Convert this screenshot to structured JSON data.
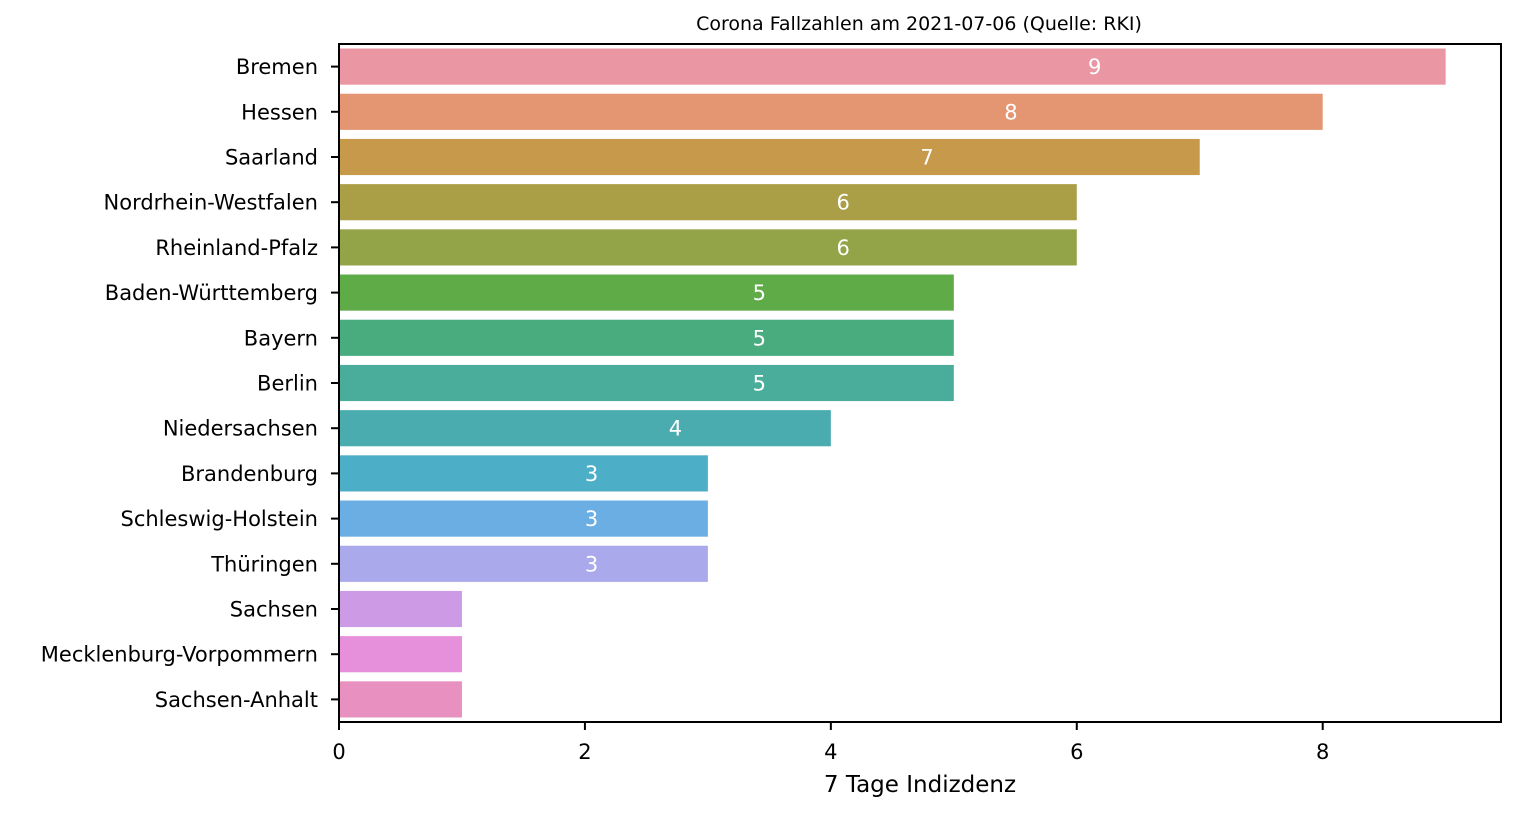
{
  "chart_data": {
    "type": "bar",
    "orientation": "horizontal",
    "title": "Corona Fallzahlen am 2021-07-06 (Quelle: RKI)",
    "xlabel": "7 Tage Indizdenz",
    "ylabel": "",
    "xlim": [
      0,
      9.45
    ],
    "xticks": [
      0,
      2,
      4,
      6,
      8
    ],
    "grid": false,
    "categories": [
      "Bremen",
      "Hessen",
      "Saarland",
      "Nordrhein-Westfalen",
      "Rheinland-Pfalz",
      "Baden-Württemberg",
      "Bayern",
      "Berlin",
      "Niedersachsen",
      "Brandenburg",
      "Schleswig-Holstein",
      "Thüringen",
      "Sachsen",
      "Mecklenburg-Vorpommern",
      "Sachsen-Anhalt"
    ],
    "values": [
      9,
      8,
      7,
      6,
      6,
      5,
      5,
      5,
      4,
      3,
      3,
      3,
      1,
      1,
      1
    ],
    "bar_labels": [
      "9",
      "8",
      "7",
      "6",
      "6",
      "5",
      "5",
      "5",
      "4",
      "3",
      "3",
      "3",
      "",
      "",
      ""
    ],
    "colors": [
      "#ea96a3",
      "#e49572",
      "#c69a4a",
      "#aa9e47",
      "#92a447",
      "#5eab47",
      "#49ac7f",
      "#4aad9b",
      "#4bacb0",
      "#4daec8",
      "#6aaee3",
      "#aaa9eb",
      "#cd9be6",
      "#e68fdb",
      "#e891c1"
    ]
  }
}
